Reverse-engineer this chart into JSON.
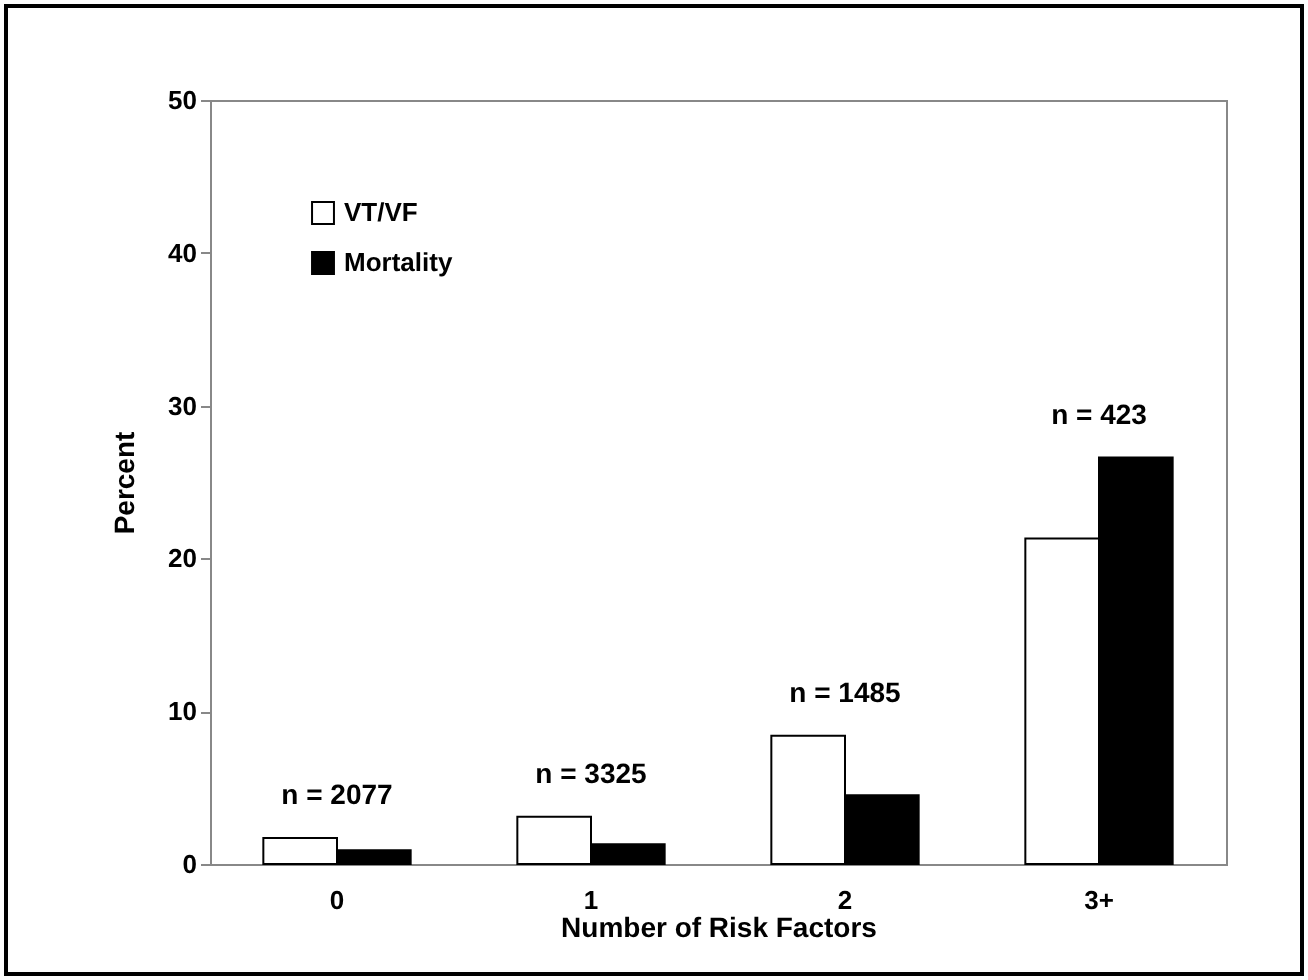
{
  "chart_data": {
    "type": "bar",
    "xlabel": "Number of Risk Factors",
    "ylabel": "Percent",
    "categories": [
      "0",
      "1",
      "2",
      "3+"
    ],
    "series": [
      {
        "name": "VT/VF",
        "color": "#ffffff",
        "values": [
          1.7,
          3.1,
          8.4,
          21.3
        ]
      },
      {
        "name": "Mortality",
        "color": "#000000",
        "values": [
          0.9,
          1.3,
          4.5,
          26.6
        ]
      }
    ],
    "ylim": [
      0,
      50
    ],
    "yticks": [
      0,
      10,
      20,
      30,
      40,
      50
    ],
    "grid": false,
    "legend": "top left",
    "annotations": [
      "n = 2077",
      "n = 3325",
      "n = 1485",
      "n = 423"
    ]
  }
}
